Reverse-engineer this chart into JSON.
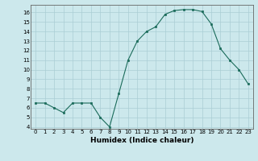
{
  "x": [
    0,
    1,
    2,
    3,
    4,
    5,
    6,
    7,
    8,
    9,
    10,
    11,
    12,
    13,
    14,
    15,
    16,
    17,
    18,
    19,
    20,
    21,
    22,
    23
  ],
  "y": [
    6.5,
    6.5,
    6.0,
    5.5,
    6.5,
    6.5,
    6.5,
    5.0,
    4.0,
    7.5,
    11.0,
    13.0,
    14.0,
    14.5,
    15.8,
    16.2,
    16.3,
    16.3,
    16.1,
    14.8,
    12.2,
    11.0,
    10.0,
    8.5
  ],
  "line_color": "#1a6b5a",
  "marker": "s",
  "marker_size": 1.8,
  "xlabel": "Humidex (Indice chaleur)",
  "xlim": [
    -0.5,
    23.5
  ],
  "ylim": [
    3.8,
    16.8
  ],
  "yticks": [
    4,
    5,
    6,
    7,
    8,
    9,
    10,
    11,
    12,
    13,
    14,
    15,
    16
  ],
  "xticks": [
    0,
    1,
    2,
    3,
    4,
    5,
    6,
    7,
    8,
    9,
    10,
    11,
    12,
    13,
    14,
    15,
    16,
    17,
    18,
    19,
    20,
    21,
    22,
    23
  ],
  "background_color": "#cce8ec",
  "grid_color": "#aacdd4",
  "tick_label_fontsize": 5.0,
  "xlabel_fontsize": 6.5
}
